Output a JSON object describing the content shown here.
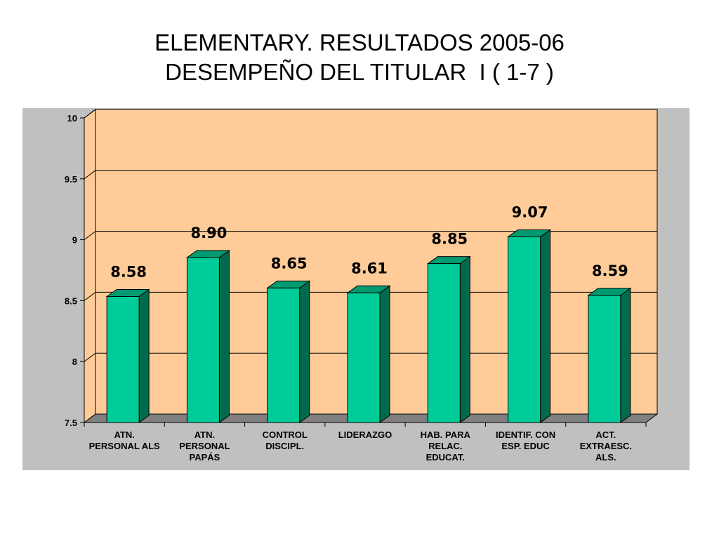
{
  "title": {
    "line1": "ELEMENTARY. RESULTADOS 2005-06",
    "line2": "DESEMPEÑO DEL TITULAR  I ( 1-7 )"
  },
  "colors": {
    "plot_background": "#ffcc99",
    "outer_background": "#c0c0c0",
    "bar_front": "#00cc99",
    "bar_top": "#009a70",
    "bar_side": "#006a4c",
    "floor": "#808080"
  },
  "chart_data": {
    "type": "bar",
    "style": "3d-column",
    "title": "ELEMENTARY. RESULTADOS 2005-06 DESEMPEÑO DEL TITULAR  I ( 1-7 )",
    "xlabel": "",
    "ylabel": "",
    "categories": [
      [
        "ATN.",
        "PERSONAL ALS"
      ],
      [
        "ATN.",
        "PERSONAL",
        "PAPÁS"
      ],
      [
        "CONTROL",
        "DISCIPL."
      ],
      [
        "LIDERAZGO"
      ],
      [
        "HAB. PARA",
        "RELAC.",
        "EDUCAT."
      ],
      [
        "IDENTIF. CON",
        "ESP. EDUC"
      ],
      [
        "ACT.",
        "EXTRAESC.",
        "ALS."
      ]
    ],
    "values": [
      8.58,
      8.9,
      8.65,
      8.61,
      8.85,
      9.07,
      8.59
    ],
    "value_labels": [
      "8.58",
      "8.90",
      "8.65",
      "8.61",
      "8.85",
      "9.07",
      "8.59"
    ],
    "ylim": [
      7.5,
      10
    ],
    "yticks": [
      7.5,
      8,
      8.5,
      9,
      9.5,
      10
    ],
    "ytick_labels": [
      "7.5",
      "8",
      "8.5",
      "9",
      "9.5",
      "10"
    ],
    "grid": true,
    "legend": "none"
  }
}
